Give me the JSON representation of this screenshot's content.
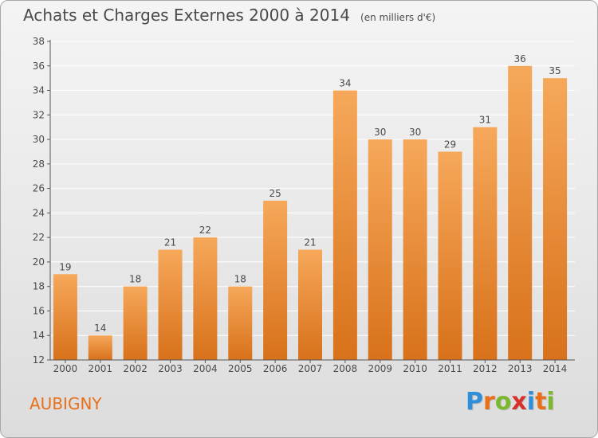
{
  "title": "Achats et Charges Externes 2000 à 2014",
  "subtitle": "(en milliers d'€)",
  "commune": "AUBIGNY",
  "logo": {
    "letters": [
      "P",
      "r",
      "o",
      "x",
      "i",
      "t",
      "i"
    ],
    "colors": [
      "#2f8fd8",
      "#e8701a",
      "#7cb82f",
      "#d8302a",
      "#2f8fd8",
      "#e8701a",
      "#7cb82f"
    ]
  },
  "colors": {
    "bar_light": "#f6a85a",
    "bar_dark": "#d8711a",
    "grid": "#ffffff",
    "axis": "#555555",
    "text": "#4a4a4a",
    "commune": "#e8701a"
  },
  "chart_data": {
    "type": "bar",
    "categories": [
      "2000",
      "2001",
      "2002",
      "2003",
      "2004",
      "2005",
      "2006",
      "2007",
      "2008",
      "2009",
      "2010",
      "2011",
      "2012",
      "2013",
      "2014"
    ],
    "values": [
      19,
      14,
      18,
      21,
      22,
      18,
      25,
      21,
      34,
      30,
      30,
      29,
      31,
      36,
      35
    ],
    "ylim": [
      12,
      38
    ],
    "yticks": [
      12,
      14,
      16,
      18,
      20,
      22,
      24,
      26,
      28,
      30,
      32,
      34,
      36,
      38
    ],
    "grid": true,
    "data_labels": true,
    "xlabel": "",
    "ylabel": ""
  }
}
